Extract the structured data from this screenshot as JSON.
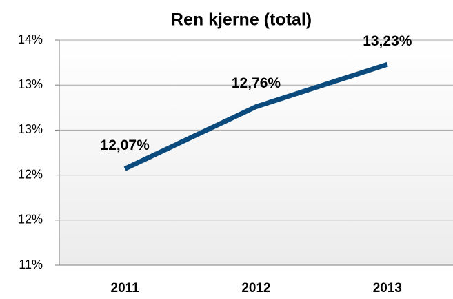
{
  "chart_data": {
    "type": "line",
    "title": "Ren kjerne (total)",
    "categories": [
      "2011",
      "2012",
      "2013"
    ],
    "series": [
      {
        "name": "Ren kjerne (total)",
        "color": "#0b4a7d",
        "values": [
          12.07,
          12.76,
          13.23
        ],
        "value_labels": [
          "12,07%",
          "12,76%",
          "13,23%"
        ]
      }
    ],
    "ylim": [
      11,
      13.5
    ],
    "yticks": [
      {
        "value": 11,
        "label": "11%"
      },
      {
        "value": 11.5,
        "label": "12%"
      },
      {
        "value": 12,
        "label": "12%"
      },
      {
        "value": 12.5,
        "label": "13%"
      },
      {
        "value": 13,
        "label": "13%"
      },
      {
        "value": 13.5,
        "label": "14%"
      }
    ],
    "grid": true
  }
}
